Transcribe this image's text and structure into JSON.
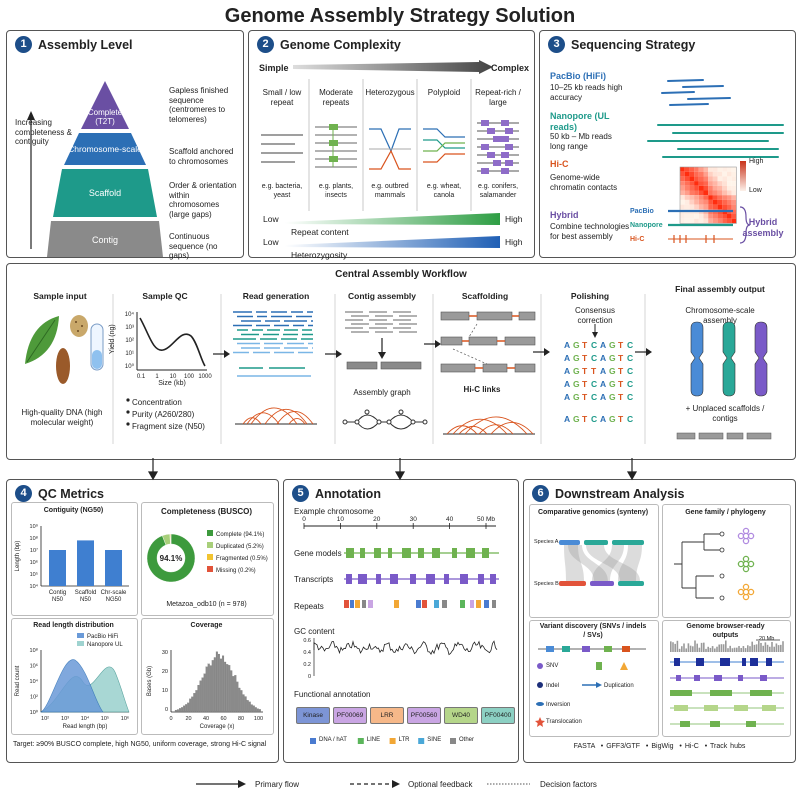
{
  "title": "Genome Assembly Strategy Solution",
  "panel1": {
    "num": "1",
    "title": "Assembly Level",
    "axis_label": "Increasing completeness & contiguity",
    "levels": [
      {
        "label": "Complete (T2T)",
        "desc": "Gapless finished sequence (centromeres to telomeres)",
        "color": "#6a4fa3"
      },
      {
        "label": "Chromosome-scale",
        "desc": "Scaffold anchored to chromosomes",
        "color": "#2c6fb5"
      },
      {
        "label": "Scaffold",
        "desc": "Order & orientation within chromosomes (large gaps)",
        "color": "#1e9a8a"
      },
      {
        "label": "Contig",
        "desc": "Continuous sequence (no gaps)",
        "color": "#8a8a8a"
      }
    ]
  },
  "panel2": {
    "num": "2",
    "title": "Genome Complexity",
    "simple": "Simple",
    "complex": "Complex",
    "columns": [
      {
        "head": "Small / low repeat",
        "example": "e.g. bacteria, yeast"
      },
      {
        "head": "Moderate repeats",
        "example": "e.g. plants, insects"
      },
      {
        "head": "Heterozygous",
        "example": "e.g. outbred mammals"
      },
      {
        "head": "Polyploid",
        "example": "e.g. wheat, canola"
      },
      {
        "head": "Repeat-rich / large",
        "example": "e.g. conifers, salamander"
      }
    ],
    "gradients": [
      {
        "low": "Low",
        "high": "High",
        "label": "Repeat content",
        "color": "#2e9e44"
      },
      {
        "low": "Low",
        "high": "High",
        "label": "Heterozygosity",
        "color": "#1f5fb5"
      }
    ]
  },
  "panel3": {
    "num": "3",
    "title": "Sequencing Strategy",
    "rows": [
      {
        "name": "PacBio (HiFi)",
        "desc": "10–25 kb reads high accuracy",
        "color": "#2c6fb5"
      },
      {
        "name": "Nanopore (UL reads)",
        "desc": "50 kb – Mb reads long range",
        "color": "#1e9a8a"
      },
      {
        "name": "Hi-C",
        "desc": "Genome-wide chromatin contacts",
        "color": "#d9541e"
      },
      {
        "name": "Hybrid",
        "desc": "Combine technologies for best assembly",
        "color": "#6a4fa3"
      }
    ],
    "heat_high": "High",
    "heat_low": "Low",
    "hybrid_tracks": [
      "PacBio",
      "Nanopore",
      "Hi-C"
    ],
    "hybrid_label": "Hybrid assembly"
  },
  "workflow": {
    "title": "Central Assembly Workflow",
    "steps": [
      "Sample input",
      "Sample QC",
      "Read generation",
      "Contig assembly",
      "Scaffolding",
      "Polishing",
      "Final assembly output"
    ],
    "sample_caption": "High-quality DNA (high molecular weight)",
    "qc_ylabel": "Yield (ng)",
    "qc_xlabel": "Size (kb)",
    "qc_yticks": [
      "10⁴",
      "10³",
      "10²",
      "10¹",
      "10⁰"
    ],
    "qc_xticks": [
      "0.1",
      "1",
      "10",
      "100",
      "1000"
    ],
    "qc_bullets": [
      "Concentration",
      "Purity (A260/280)",
      "Fragment size (N50)"
    ],
    "assembly_graph": "Assembly graph",
    "hic_links": "Hi-C links",
    "consensus": "Consensus correction",
    "polish_rows": [
      [
        "A",
        "G",
        "T",
        "C",
        "A",
        "G",
        "T",
        "C"
      ],
      [
        "A",
        "G",
        "T",
        "C",
        "A",
        "G",
        "T",
        "C"
      ],
      [
        "A",
        "G",
        "T",
        "T",
        "A",
        "G",
        "T",
        "C"
      ],
      [
        "A",
        "G",
        "T",
        "C",
        "A",
        "G",
        "T",
        "C"
      ],
      [
        "A",
        "G",
        "T",
        "C",
        "A",
        "G",
        "T",
        "C"
      ]
    ],
    "polish_final": [
      "A",
      "G",
      "T",
      "C",
      "A",
      "G",
      "T",
      "C"
    ],
    "final_sub": "Chromosome-scale assembly",
    "unplaced": "+ Unplaced scaffolds / contigs"
  },
  "panel4": {
    "num": "4",
    "title": "QC Metrics",
    "contiguity": {
      "title": "Contiguity (NG50)",
      "ylabel": "Length (bp)",
      "yticks": [
        "10⁹",
        "10⁸",
        "10⁷",
        "10⁶",
        "10⁵",
        "10⁴"
      ],
      "bars": [
        {
          "label": "Contig N50",
          "log": 7.0
        },
        {
          "label": "Scaffold N50",
          "log": 7.8
        },
        {
          "label": "Chr-scale NG50",
          "log": 7.0
        }
      ]
    },
    "busco": {
      "title": "Completeness (BUSCO)",
      "center": "94.1%",
      "caption": "Metazoa_odb10 (n = 978)",
      "items": [
        {
          "label": "Complete (94.1%)",
          "value": 94.1,
          "color": "#3d9a3d"
        },
        {
          "label": "Duplicated (5.2%)",
          "value": 5.2,
          "color": "#a8cf7a"
        },
        {
          "label": "Fragmented (0.5%)",
          "value": 0.5,
          "color": "#f2c431"
        },
        {
          "label": "Missing (0.2%)",
          "value": 0.2,
          "color": "#e2533a"
        }
      ]
    },
    "readlen": {
      "title": "Read length distribution",
      "ylabel": "Read count",
      "xlabel": "Read length (bp)",
      "xticks": [
        "10²",
        "10³",
        "10⁴",
        "10⁵",
        "10⁶"
      ],
      "yticks": [
        "10⁸",
        "10⁶",
        "10⁴",
        "10²",
        "10⁰"
      ],
      "legend": [
        "PacBio HiFi",
        "Nanopore UL"
      ]
    },
    "coverage": {
      "title": "Coverage",
      "ylabel": "Bases (Gb)",
      "xlabel": "Coverage (x)",
      "xticks": [
        "0",
        "20",
        "40",
        "60",
        "80",
        "100"
      ],
      "yticks": [
        "30",
        "20",
        "10",
        "0"
      ]
    },
    "target": "Target: ≥90% BUSCO complete, high NG50, uniform coverage, strong Hi-C signal"
  },
  "panel5": {
    "num": "5",
    "title": "Annotation",
    "chrom_label": "Example chromosome",
    "ruler": [
      "0",
      "10",
      "20",
      "30",
      "40",
      "50 Mb"
    ],
    "tracks": [
      "Gene models",
      "Transcripts",
      "Repeats"
    ],
    "gc_label": "GC content",
    "gc_ticks": [
      "0.6",
      "0.4",
      "0.2",
      "0"
    ],
    "func_label": "Functional annotation",
    "domains": [
      {
        "label": "Kinase",
        "color": "#7d95d6"
      },
      {
        "label": "PF00069",
        "color": "#c9a5e3"
      },
      {
        "label": "LRR",
        "color": "#f6b889"
      },
      {
        "label": "PF00560",
        "color": "#c9a5e3"
      },
      {
        "label": "WD40",
        "color": "#b5d68a"
      },
      {
        "label": "PF00400",
        "color": "#8cd0c3"
      }
    ],
    "repeat_legend": [
      {
        "label": "DNA / hAT",
        "color": "#4a7bd0"
      },
      {
        "label": "LINE",
        "color": "#5bb55b"
      },
      {
        "label": "LTR",
        "color": "#f2a735"
      },
      {
        "label": "SINE",
        "color": "#4aa8d8"
      },
      {
        "label": "Other",
        "color": "#888888"
      }
    ]
  },
  "panel6": {
    "num": "6",
    "title": "Downstream Analysis",
    "synteny": {
      "title": "Comparative genomics (synteny)",
      "species": [
        "Species A",
        "Species B"
      ]
    },
    "phylo": {
      "title": "Gene family / phylogeny"
    },
    "variant": {
      "title": "Variant discovery (SNVs / indels / SVs)",
      "items": [
        "SNV",
        "Indel",
        "Duplication",
        "Inversion",
        "Translocation"
      ]
    },
    "browser": {
      "title": "Genome browser-ready outputs",
      "scale": "20 Mb"
    },
    "formats": [
      "FASTA",
      "GFF3/GTF",
      "BigWig",
      "Hi-C",
      "Track hubs"
    ]
  },
  "legend": [
    {
      "label": "Primary flow"
    },
    {
      "label": "Optional feedback"
    },
    {
      "label": "Decision factors"
    }
  ]
}
